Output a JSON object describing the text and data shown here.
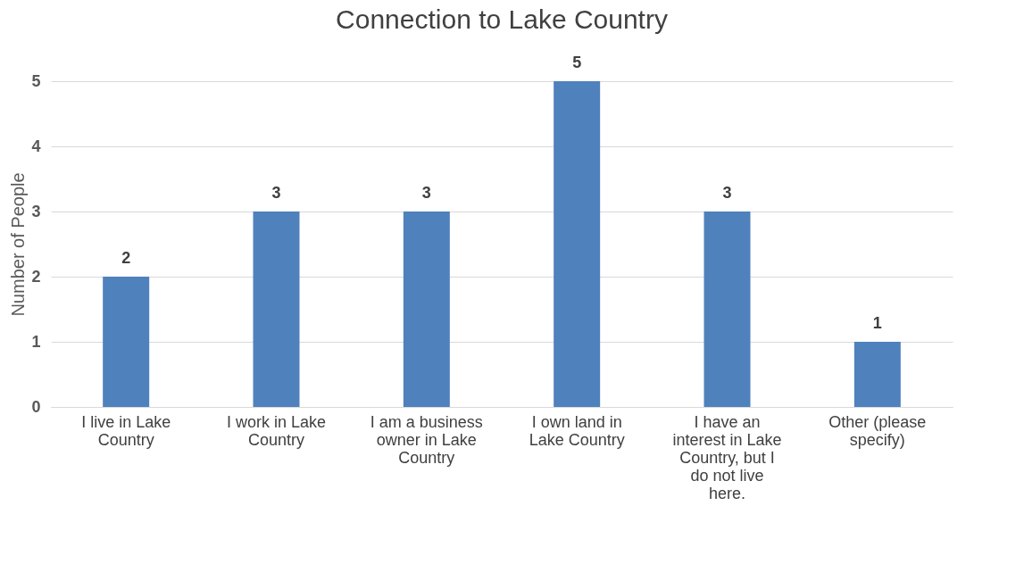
{
  "chart_data": {
    "type": "bar",
    "title": "Connection to Lake Country",
    "ylabel": "Number of People",
    "categories": [
      "I live in Lake Country",
      "I work in Lake Country",
      "I am a business owner in Lake Country",
      "I own land in Lake Country",
      "I have an interest in Lake Country, but I do not live here.",
      "Other (please specify)"
    ],
    "values": [
      2,
      3,
      3,
      5,
      3,
      1
    ],
    "color": "#4f81bd",
    "ylim": [
      0,
      5
    ],
    "yticks": [
      0,
      1,
      2,
      3,
      4,
      5
    ],
    "grid": "y",
    "data_labels": true
  }
}
